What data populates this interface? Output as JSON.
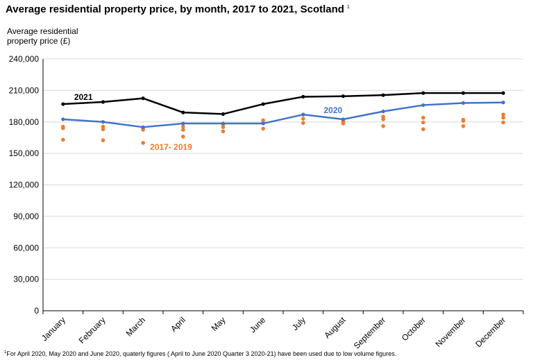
{
  "chart_data": {
    "type": "line",
    "title": "Average residential property price, by month, 2017 to 2021, Scotland",
    "title_footnote_marker": "1",
    "ylabel": "Average residential property price (£)",
    "xlabel": "",
    "ylim": [
      0,
      240000
    ],
    "yticks": [
      0,
      30000,
      60000,
      90000,
      120000,
      150000,
      180000,
      210000,
      240000
    ],
    "ytick_labels": [
      "0",
      "30,000",
      "60,000",
      "90,000",
      "120,000",
      "150,000",
      "180,000",
      "210,000",
      "240,000"
    ],
    "grid": true,
    "categories": [
      "January",
      "February",
      "March",
      "April",
      "May",
      "June",
      "July",
      "August",
      "September",
      "October",
      "November",
      "December"
    ],
    "series": [
      {
        "name": "2021",
        "label": "2021",
        "style": "line",
        "color": "#000000",
        "values": [
          197000,
          199000,
          202500,
          189000,
          187500,
          197000,
          204000,
          204500,
          205500,
          207500,
          207500,
          207500
        ]
      },
      {
        "name": "2020",
        "label": "2020",
        "style": "line",
        "color": "#4472C4",
        "values": [
          182500,
          180000,
          175000,
          178500,
          178500,
          178500,
          187000,
          182500,
          190000,
          196000,
          198000,
          198500
        ]
      },
      {
        "name": "2017",
        "style": "dots",
        "color": "#ED7D31",
        "values": [
          163000,
          162500,
          160000,
          166000,
          171000,
          173500,
          179000,
          178500,
          176000,
          173000,
          176000,
          179500
        ]
      },
      {
        "name": "2018",
        "style": "dots",
        "color": "#ED7D31",
        "values": [
          174000,
          173000,
          172500,
          172500,
          175000,
          179000,
          183000,
          180000,
          182500,
          179500,
          181000,
          184000
        ]
      },
      {
        "name": "2019",
        "style": "dots",
        "color": "#ED7D31",
        "values": [
          175500,
          175500,
          174000,
          175500,
          177500,
          181500,
          187000,
          181000,
          185000,
          184000,
          182000,
          187000
        ]
      }
    ],
    "annotations": [
      {
        "text": "2017- 2019",
        "color": "#ED7D31"
      }
    ]
  },
  "footnote": {
    "marker": "1",
    "text": "For April 2020, May 2020 and June 2020, quaterly figures ( April to June 2020 Quarter 3 2020-21)  have been used due to low volume figures."
  }
}
